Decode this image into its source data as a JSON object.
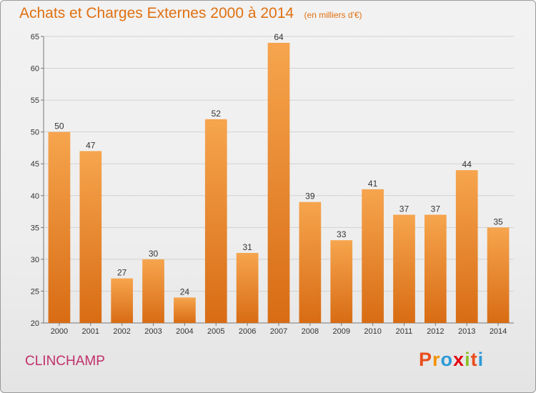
{
  "header": {
    "title": "Achats et Charges Externes 2000 à 2014",
    "subtitle": "(en milliers d'€)"
  },
  "footer": {
    "commune": "CLINCHAMP",
    "brand": {
      "letters": [
        "P",
        "r",
        "o",
        "x",
        "i",
        "t",
        "i"
      ],
      "colors": [
        "#e94e1b",
        "#f39200",
        "#2e9ad7",
        "#e30613",
        "#8cbf26",
        "#e94e1b",
        "#2e9ad7"
      ]
    }
  },
  "colors": {
    "bar_top": "#f6a54e",
    "bar_bottom": "#d86c14",
    "grid": "#d2d2d2",
    "axis": "#777777",
    "title": "#e07010",
    "commune": "#c0306a"
  },
  "chart_data": {
    "type": "bar",
    "title": "Achats et Charges Externes 2000 à 2014",
    "subtitle": "(en milliers d'€)",
    "xlabel": "",
    "ylabel": "",
    "categories": [
      "2000",
      "2001",
      "2002",
      "2003",
      "2004",
      "2005",
      "2006",
      "2007",
      "2008",
      "2009",
      "2010",
      "2011",
      "2012",
      "2013",
      "2014"
    ],
    "values": [
      50,
      47,
      27,
      30,
      24,
      52,
      31,
      64,
      39,
      33,
      41,
      37,
      37,
      44,
      35
    ],
    "ylim": [
      20,
      65
    ],
    "yticks": [
      20,
      25,
      30,
      35,
      40,
      45,
      50,
      55,
      60,
      65
    ],
    "grid": true,
    "legend": "none",
    "data_labels": true
  }
}
